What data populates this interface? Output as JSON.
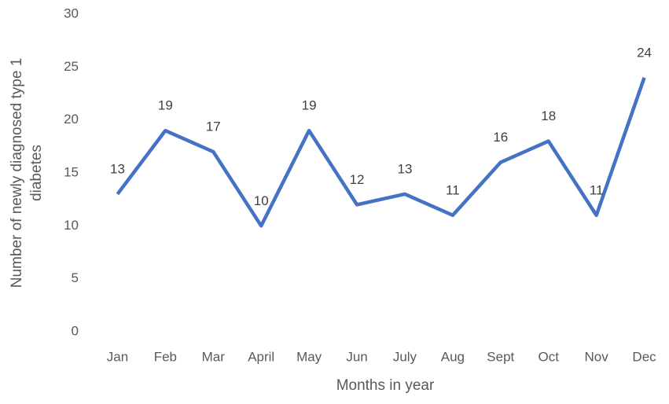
{
  "chart_data": {
    "type": "line",
    "xlabel": "Months in year",
    "ylabel": [
      "Number of newly diagnosed type 1",
      "diabetes"
    ],
    "categories": [
      "Jan",
      "Feb",
      "Mar",
      "April",
      "May",
      "Jun",
      "July",
      "Aug",
      "Sept",
      "Oct",
      "Nov",
      "Dec"
    ],
    "values": [
      13,
      19,
      17,
      10,
      19,
      12,
      13,
      11,
      16,
      18,
      11,
      24
    ],
    "color": "#4472c4",
    "ylim": [
      0,
      30
    ],
    "yticks": [
      0,
      5,
      10,
      15,
      20,
      25,
      30
    ],
    "grid": false
  }
}
